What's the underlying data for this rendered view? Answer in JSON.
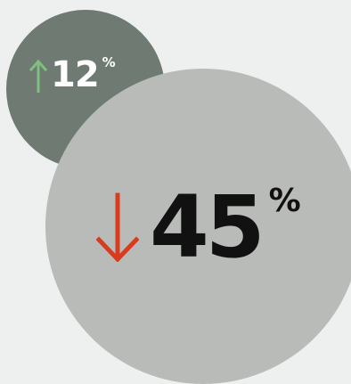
{
  "stats": [
    {
      "direction": "up",
      "value": "12",
      "unit": "%",
      "arrow_icon": "arrow-up-icon",
      "arrow_color": "#7fbf7f",
      "text_color": "#ffffff",
      "circle_color": "#6f7a72"
    },
    {
      "direction": "down",
      "value": "45",
      "unit": "%",
      "arrow_icon": "arrow-down-icon",
      "arrow_color": "#d93b1f",
      "text_color": "#111111",
      "circle_color": "#b9bbb8"
    }
  ],
  "background_color": "#eef0f0"
}
